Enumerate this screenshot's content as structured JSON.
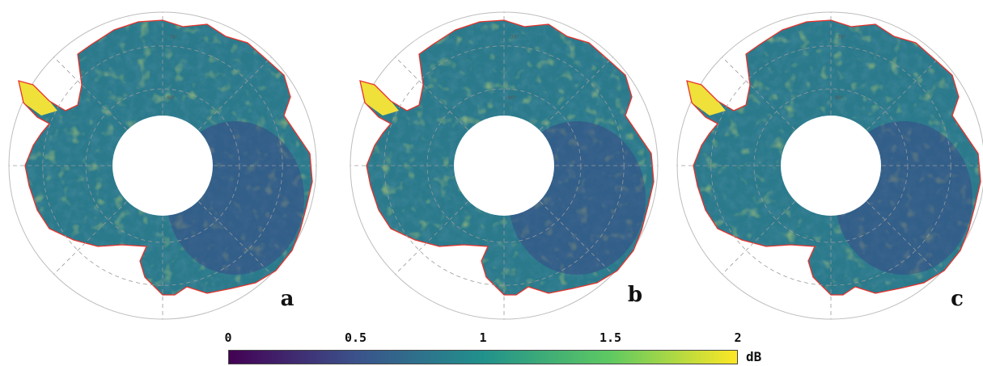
{
  "panels": [
    {
      "letter": "a"
    },
    {
      "letter": "b"
    },
    {
      "letter": "c"
    }
  ],
  "grid_labels": {
    "lat_outer": "70°",
    "lat_inner": "80°"
  },
  "colorbar": {
    "ticks": [
      "0",
      "0.5",
      "1",
      "1.5",
      "2"
    ],
    "tick_values": [
      0,
      0.5,
      1,
      1.5,
      2
    ],
    "unit": "dB",
    "range": [
      0,
      2
    ],
    "colormap": "viridis",
    "colors": [
      "#440154",
      "#3b528b",
      "#21918c",
      "#5ec962",
      "#fde725"
    ]
  },
  "colors": {
    "coastline": "#e8322b",
    "grid": "#9a9a9a",
    "hole": "#ffffff"
  }
}
